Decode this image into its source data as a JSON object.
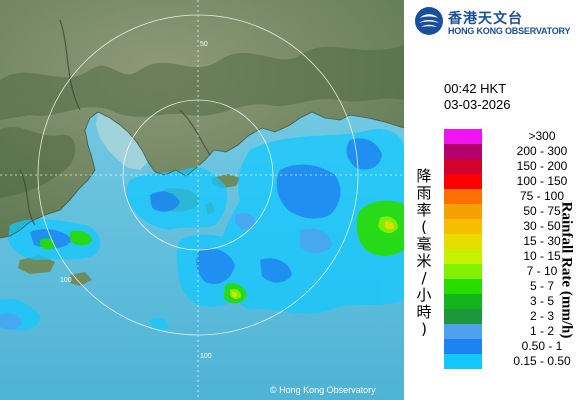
{
  "header": {
    "org_name_zh": "香港天文台",
    "org_name_en": "HONG KONG OBSERVATORY"
  },
  "timestamp": {
    "time": "00:42 HKT",
    "date": "03-03-2026"
  },
  "map": {
    "ring_labels": [
      "50",
      "100",
      "100"
    ],
    "copyright": "© Hong Kong Observatory"
  },
  "legend": {
    "title_zh": "降雨率(毫米/小時)",
    "title_en": "Rainfall Rate (mm/h)",
    "bins": [
      {
        "label": ">300",
        "color": "#f014f0"
      },
      {
        "label": "200 - 300",
        "color": "#b4006e"
      },
      {
        "label": "150 - 200",
        "color": "#d2002d"
      },
      {
        "label": "100 - 150",
        "color": "#fa0000"
      },
      {
        "label": "75 - 100",
        "color": "#ff6e00"
      },
      {
        "label": "50 - 75",
        "color": "#f5a000"
      },
      {
        "label": "30 - 50",
        "color": "#f5be00"
      },
      {
        "label": "15 - 30",
        "color": "#e6dc00"
      },
      {
        "label": "10 - 15",
        "color": "#c8f000"
      },
      {
        "label": "7 - 10",
        "color": "#82f000"
      },
      {
        "label": "5 - 7",
        "color": "#28dc00"
      },
      {
        "label": "3 - 5",
        "color": "#14b41e"
      },
      {
        "label": "2 - 3",
        "color": "#1e963c"
      },
      {
        "label": "1 - 2",
        "color": "#50a0f0"
      },
      {
        "label": "0.50 - 1",
        "color": "#1e82f0"
      },
      {
        "label": "0.15 - 0.50",
        "color": "#14c8ff"
      }
    ]
  }
}
